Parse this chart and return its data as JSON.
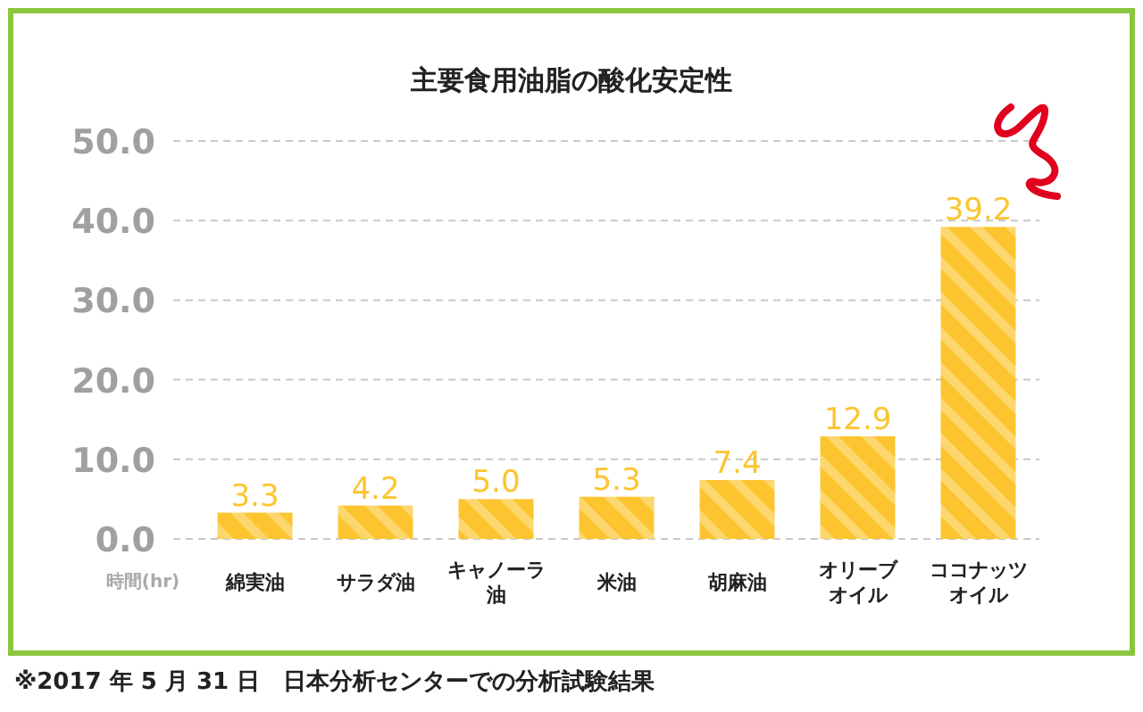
{
  "chart_data": {
    "type": "bar",
    "title": "主要食用油脂の酸化安定性",
    "ylabel": "時間(hr)",
    "categories": [
      "綿実油",
      "サラダ油",
      "キャノーラ油",
      "米油",
      "胡麻油",
      "オリーブオイル",
      "ココナッツオイル"
    ],
    "values": [
      3.3,
      4.2,
      5.0,
      5.3,
      7.4,
      12.9,
      39.2
    ],
    "color": "#fcc52f",
    "ylim": [
      0,
      50
    ],
    "yticks": [
      {
        "value": 0,
        "label": "0.0"
      },
      {
        "value": 10,
        "label": "10.0"
      },
      {
        "value": 20,
        "label": "20.0"
      },
      {
        "value": 30,
        "label": "30.0"
      },
      {
        "value": 40,
        "label": "40.0"
      },
      {
        "value": 50,
        "label": "50.0"
      }
    ],
    "grid": "y",
    "value_labels": [
      "3.3",
      "4.2",
      "5.0",
      "5.3",
      "7.4",
      "12.9",
      "39.2"
    ],
    "annotations": [
      "※2017 年 5 月 31 日　日本分析センターでの分析試験結果"
    ]
  }
}
